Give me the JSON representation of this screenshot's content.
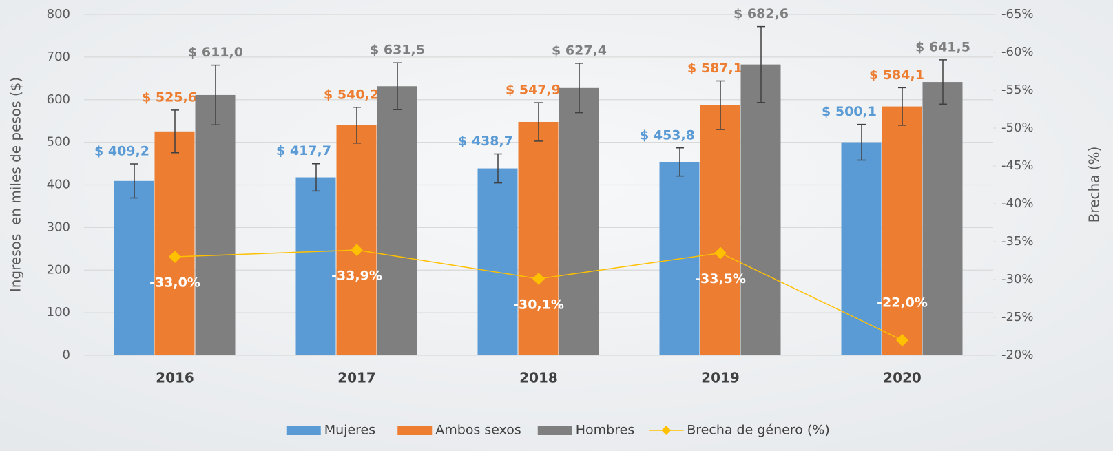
{
  "chart_data": {
    "type": "bar",
    "ylabel": "Ingresos  en miles de pesos ($)",
    "y2label": "Brecha (%)",
    "categories": [
      "2016",
      "2017",
      "2018",
      "2019",
      "2020"
    ],
    "series": [
      {
        "name": "Mujeres",
        "color": "#5b9bd5",
        "values": [
          409.2,
          417.7,
          438.7,
          453.8,
          500.1
        ],
        "value_labels": [
          "$ 409,2",
          "$ 417,7",
          "$ 438,7",
          "$ 453,8",
          "$ 500,1"
        ],
        "errors": [
          40,
          32,
          34,
          33,
          42
        ]
      },
      {
        "name": "Ambos sexos",
        "color": "#ed7d31",
        "values": [
          525.6,
          540.2,
          547.9,
          587.1,
          584.1
        ],
        "value_labels": [
          "$ 525,6",
          "$ 540,2",
          "$ 547,9",
          "$ 587,1",
          "$ 584,1"
        ],
        "errors": [
          50,
          42,
          45,
          57,
          44
        ]
      },
      {
        "name": "Hombres",
        "color": "#7f7f7f",
        "values": [
          611.0,
          631.5,
          627.4,
          682.6,
          641.5
        ],
        "value_labels": [
          "$ 611,0",
          "$ 631,5",
          "$ 627,4",
          "$ 682,6",
          "$ 641,5"
        ],
        "errors": [
          70,
          55,
          58,
          89,
          52
        ]
      },
      {
        "name": "Brecha de género (%)",
        "color": "#ffc000",
        "type": "line",
        "axis": "y2",
        "values": [
          -33.0,
          -33.9,
          -30.1,
          -33.5,
          -22.0
        ],
        "value_labels": [
          "-33,0%",
          "-33,9%",
          "-30,1%",
          "-33,5%",
          "-22,0%"
        ]
      }
    ],
    "ylim": [
      0,
      800
    ],
    "yticks": [
      0,
      100,
      200,
      300,
      400,
      500,
      600,
      700,
      800
    ],
    "y2lim": [
      -20,
      -65
    ],
    "y2ticks": [
      {
        "value": -20,
        "label": "-20%"
      },
      {
        "value": -25,
        "label": "-25%"
      },
      {
        "value": -30,
        "label": "-30%"
      },
      {
        "value": -35,
        "label": "-35%"
      },
      {
        "value": -40,
        "label": "-40%"
      },
      {
        "value": -45,
        "label": "-45%"
      },
      {
        "value": -50,
        "label": "-50%"
      },
      {
        "value": -55,
        "label": "-55%"
      },
      {
        "value": -60,
        "label": "-60%"
      },
      {
        "value": -65,
        "label": "-65%"
      }
    ],
    "grid": true,
    "legend": "bottom"
  }
}
